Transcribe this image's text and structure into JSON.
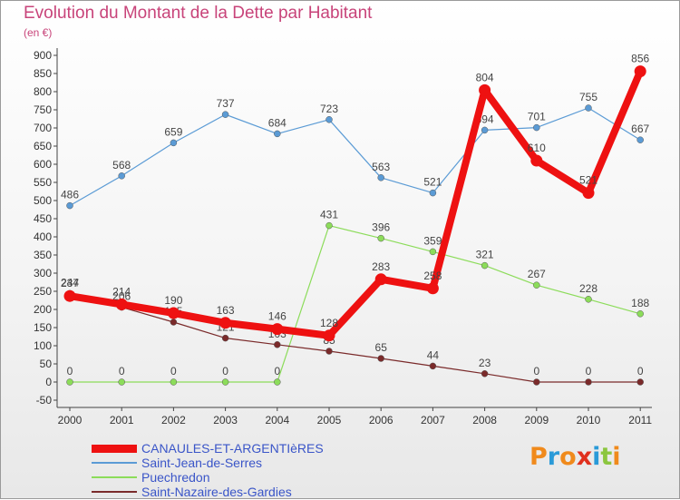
{
  "header": {
    "title": "Evolution du Montant de la Dette par Habitant",
    "subtitle": "(en €)"
  },
  "logo": {
    "text": "Proxiti",
    "colors": [
      "#f08a1c",
      "#2a9ad8",
      "#f08a1c",
      "#e0301e",
      "#2a9ad8",
      "#8cc63f",
      "#f08a1c"
    ]
  },
  "chart_data": {
    "type": "line",
    "title": "Evolution du Montant de la Dette par Habitant",
    "subtitle": "(en €)",
    "xlabel": "",
    "ylabel": "",
    "categories": [
      "2000",
      "2001",
      "2002",
      "2003",
      "2004",
      "2005",
      "2006",
      "2007",
      "2008",
      "2009",
      "2010",
      "2011"
    ],
    "ylim": [
      -50,
      900
    ],
    "yticks": [
      -50,
      0,
      50,
      100,
      150,
      200,
      250,
      300,
      350,
      400,
      450,
      500,
      550,
      600,
      650,
      700,
      750,
      800,
      850,
      900
    ],
    "grid": false,
    "legend_position": "bottom-left",
    "series": [
      {
        "name": "CANAULES-ET-ARGENTIèRES",
        "color": "#ee1111",
        "values": [
          237,
          214,
          190,
          163,
          146,
          128,
          283,
          258,
          804,
          610,
          521,
          856
        ]
      },
      {
        "name": "Saint-Jean-de-Serres",
        "color": "#5b9bd5",
        "values": [
          486,
          568,
          659,
          737,
          684,
          723,
          563,
          521,
          694,
          701,
          755,
          667
        ]
      },
      {
        "name": "Puechredon",
        "color": "#8cdc5a",
        "values": [
          0,
          0,
          0,
          0,
          0,
          431,
          396,
          359,
          321,
          267,
          228,
          188
        ]
      },
      {
        "name": "Saint-Nazaire-des-Gardies",
        "color": "#7a2a2a",
        "values": [
          244,
          206,
          165,
          121,
          103,
          85,
          65,
          44,
          23,
          0,
          0,
          0
        ]
      }
    ]
  }
}
